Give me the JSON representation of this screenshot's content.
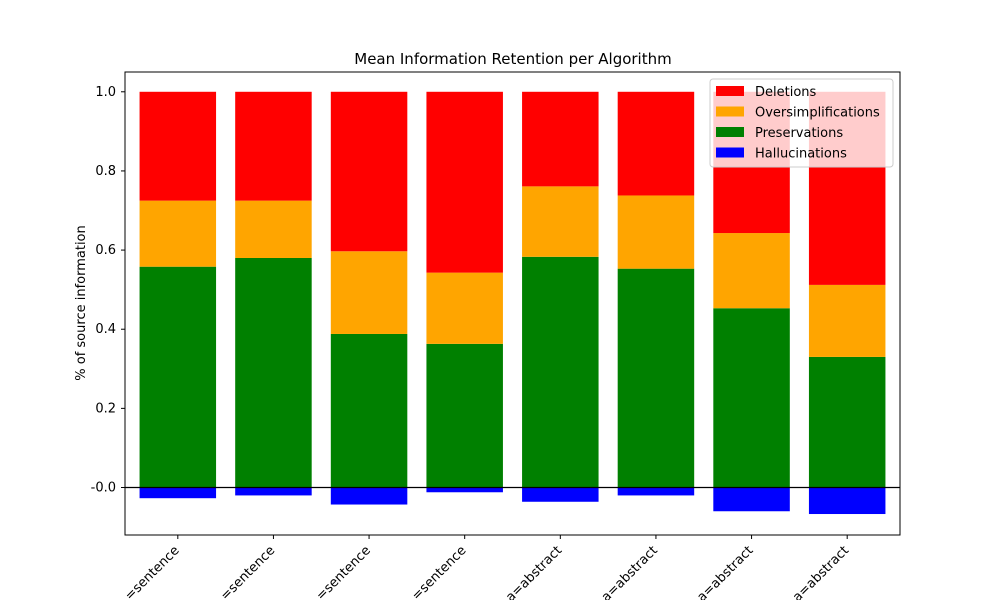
{
  "chart_data": {
    "type": "bar",
    "title": "Mean Information Retention per Algorithm",
    "xlabel": "",
    "ylabel": "% of source information",
    "ylim": [
      -0.12,
      1.05
    ],
    "yticks": [
      "-0.0",
      "0.2",
      "0.4",
      "0.6",
      "0.8",
      "1.0"
    ],
    "ytick_values": [
      0.0,
      0.2,
      0.4,
      0.6,
      0.8,
      1.0
    ],
    "categories": [
      "=sentence",
      "=sentence",
      "=sentence",
      "=sentence",
      "a=abstract",
      "a=abstract",
      "a=abstract",
      "a=abstract"
    ],
    "stacked": true,
    "zero_line": true,
    "legend_position": "top-right",
    "series": [
      {
        "name": "Preservations",
        "color": "#008000",
        "values": [
          0.558,
          0.58,
          0.388,
          0.363,
          0.583,
          0.553,
          0.453,
          0.33
        ]
      },
      {
        "name": "Oversimplifications",
        "color": "#ffa500",
        "values": [
          0.167,
          0.145,
          0.209,
          0.18,
          0.178,
          0.185,
          0.19,
          0.182
        ]
      },
      {
        "name": "Deletions",
        "color": "#ff0000",
        "values": [
          0.275,
          0.275,
          0.403,
          0.457,
          0.239,
          0.262,
          0.357,
          0.488
        ]
      },
      {
        "name": "Hallucinations",
        "color": "#0000ff",
        "values": [
          -0.027,
          -0.02,
          -0.043,
          -0.012,
          -0.036,
          -0.02,
          -0.06,
          -0.067
        ]
      }
    ],
    "legend_order": [
      "Deletions",
      "Oversimplifications",
      "Preservations",
      "Hallucinations"
    ]
  }
}
